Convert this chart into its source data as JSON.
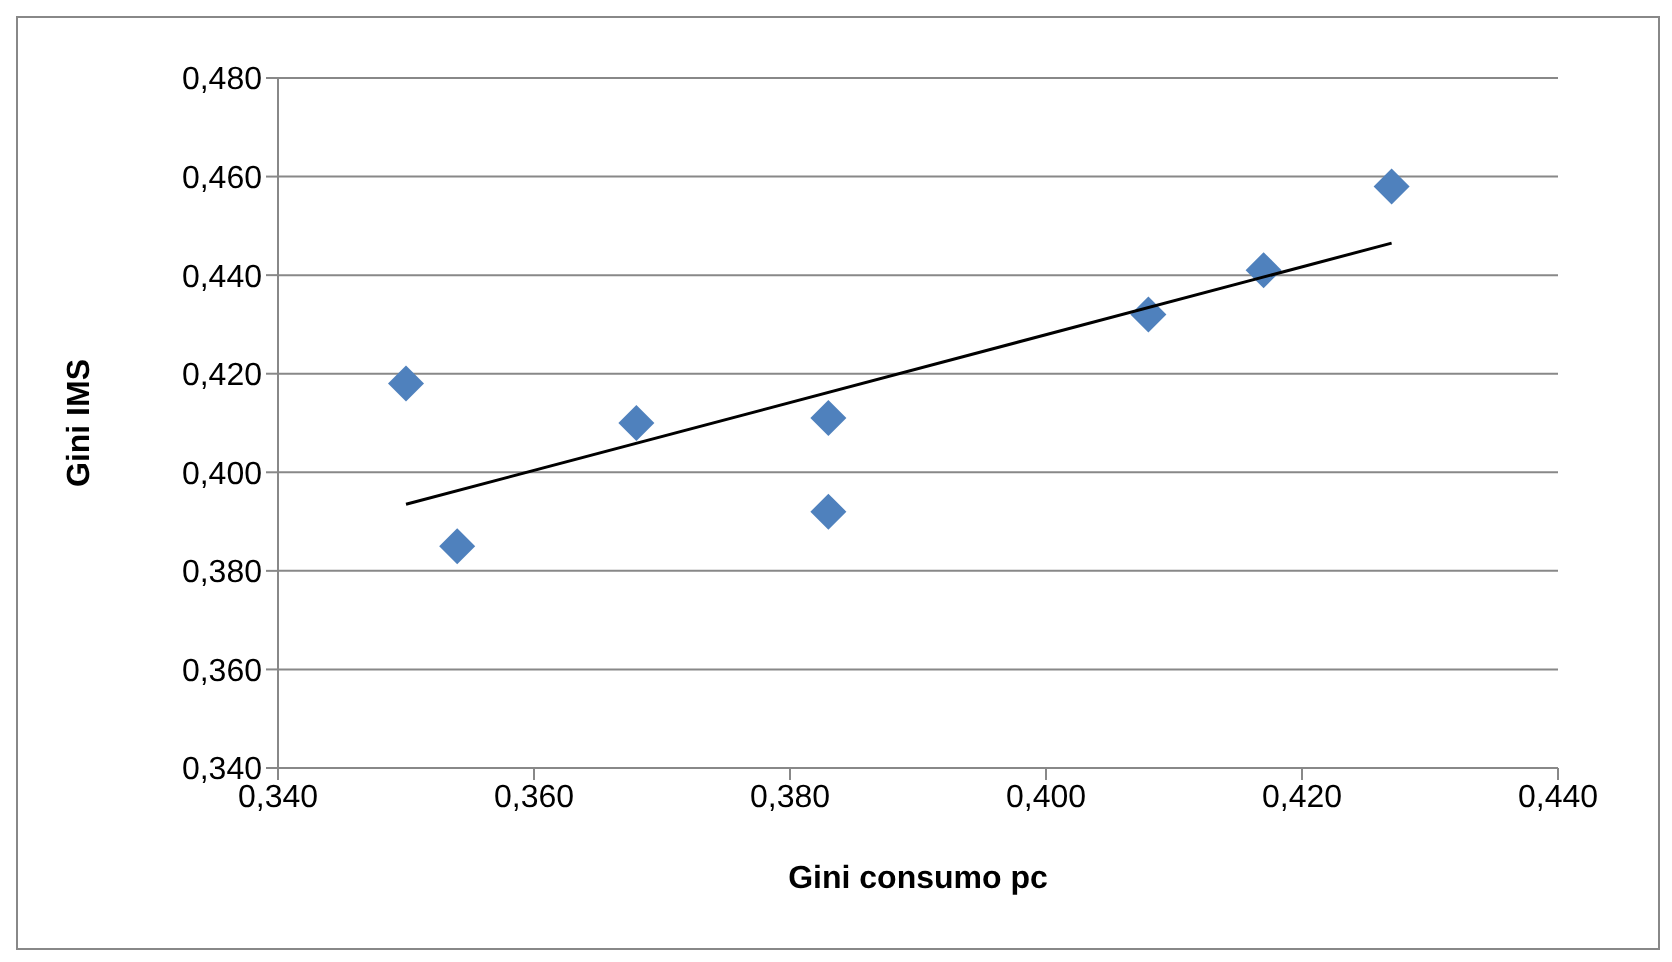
{
  "chart_data": {
    "type": "scatter",
    "xlabel": "Gini consumo pc",
    "ylabel": "Gini IMS",
    "x": [
      0.35,
      0.354,
      0.368,
      0.383,
      0.383,
      0.408,
      0.417,
      0.427
    ],
    "series": [
      {
        "color": "#4f81bd",
        "marker": "diamond",
        "values": [
          0.418,
          0.385,
          0.41,
          0.392,
          0.411,
          0.432,
          0.441,
          0.458
        ]
      },
      {
        "type": "line",
        "color": "#000000",
        "x": [
          0.35,
          0.427
        ],
        "values": [
          0.3935,
          0.4465
        ]
      }
    ],
    "xlim": [
      0.34,
      0.44
    ],
    "ylim": [
      0.34,
      0.48
    ],
    "xticks": [
      {
        "value": 0.34,
        "label": "0,340"
      },
      {
        "value": 0.36,
        "label": "0,360"
      },
      {
        "value": 0.38,
        "label": "0,380"
      },
      {
        "value": 0.4,
        "label": "0,400"
      },
      {
        "value": 0.42,
        "label": "0,420"
      },
      {
        "value": 0.44,
        "label": "0,440"
      }
    ],
    "yticks": [
      {
        "value": 0.34,
        "label": "0,340"
      },
      {
        "value": 0.36,
        "label": "0,360"
      },
      {
        "value": 0.38,
        "label": "0,380"
      },
      {
        "value": 0.4,
        "label": "0,400"
      },
      {
        "value": 0.42,
        "label": "0,420"
      },
      {
        "value": 0.44,
        "label": "0,440"
      },
      {
        "value": 0.46,
        "label": "0,460"
      },
      {
        "value": 0.48,
        "label": "0,480"
      }
    ],
    "grid": "y"
  }
}
